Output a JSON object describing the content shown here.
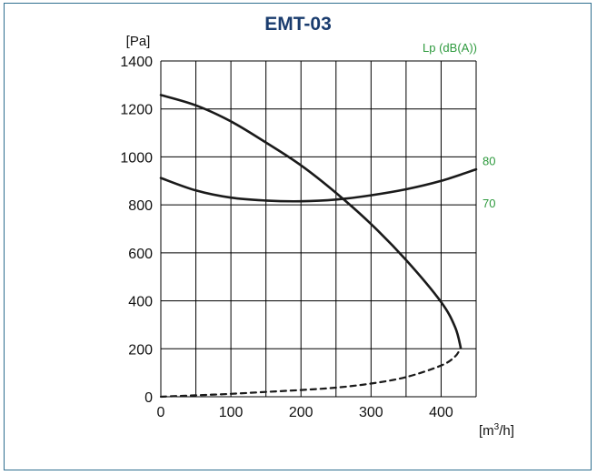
{
  "colors": {
    "frame": "#2f6f8f",
    "title": "#1a3c6e",
    "curve": "#1a1a1a",
    "grid": "#000000",
    "sound": "#2e9a3e"
  },
  "chart_data": {
    "type": "line",
    "title": "EMT-03",
    "ylabel": "[Pa]",
    "xlabel_base": "[m",
    "xlabel_sup": "3",
    "xlabel_tail": "/h]",
    "right_axis_label": "Lp (dB(A))",
    "xlim": [
      0,
      450
    ],
    "ylim": [
      0,
      1400
    ],
    "x_ticks": [
      0,
      100,
      200,
      300,
      400
    ],
    "x_grid": [
      0,
      50,
      100,
      150,
      200,
      250,
      300,
      350,
      400,
      450
    ],
    "y_ticks": [
      0,
      200,
      400,
      600,
      800,
      1000,
      1200,
      1400
    ],
    "right_ticks": [
      {
        "label": "80",
        "at_pressure": 980
      },
      {
        "label": "70",
        "at_pressure": 805
      }
    ],
    "series": [
      {
        "style": "solid",
        "axis": "pressure",
        "x": [
          0,
          50,
          100,
          150,
          200,
          250,
          300,
          350,
          400,
          420,
          428
        ],
        "y": [
          1258,
          1215,
          1148,
          1060,
          965,
          850,
          720,
          570,
          395,
          290,
          205
        ]
      },
      {
        "style": "dashed",
        "axis": "pressure",
        "x": [
          0,
          50,
          100,
          150,
          200,
          250,
          300,
          350,
          400,
          420,
          428
        ],
        "y": [
          0,
          6,
          12,
          20,
          28,
          38,
          55,
          82,
          130,
          168,
          205
        ]
      },
      {
        "style": "solid",
        "axis": "sound",
        "x": [
          0,
          50,
          100,
          150,
          200,
          250,
          300,
          350,
          400,
          450
        ],
        "y": [
          912,
          860,
          830,
          818,
          815,
          822,
          840,
          865,
          900,
          948
        ]
      }
    ]
  }
}
